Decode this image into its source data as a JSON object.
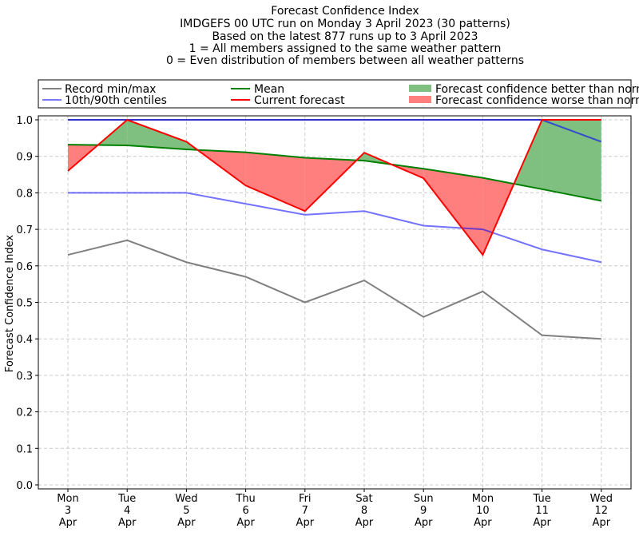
{
  "chart_data": {
    "type": "line",
    "title": [
      "Forecast Confidence Index",
      "IMDGEFS 00 UTC run on Monday 3 April 2023 (30 patterns)",
      "Based on the latest 877 runs up to 3 April 2023",
      "1 = All members assigned to the same weather pattern",
      "0 = Even distribution of members between all weather patterns"
    ],
    "ylabel": "Forecast Confidence Index",
    "xlabel": "",
    "ylim": [
      -0.01,
      1.01
    ],
    "yticks": [
      "0.0",
      "0.1",
      "0.2",
      "0.3",
      "0.4",
      "0.5",
      "0.6",
      "0.7",
      "0.8",
      "0.9",
      "1.0"
    ],
    "categories": [
      [
        "Mon",
        "3",
        "Apr"
      ],
      [
        "Tue",
        "4",
        "Apr"
      ],
      [
        "Wed",
        "5",
        "Apr"
      ],
      [
        "Thu",
        "6",
        "Apr"
      ],
      [
        "Fri",
        "7",
        "Apr"
      ],
      [
        "Sat",
        "8",
        "Apr"
      ],
      [
        "Sun",
        "9",
        "Apr"
      ],
      [
        "Mon",
        "10",
        "Apr"
      ],
      [
        "Tue",
        "11",
        "Apr"
      ],
      [
        "Wed",
        "12",
        "Apr"
      ]
    ],
    "grid": true,
    "legend_placement": "top",
    "series": [
      {
        "name": "Record min/max",
        "color": "#808080",
        "values_min": [
          0.63,
          0.67,
          0.61,
          0.57,
          0.5,
          0.56,
          0.46,
          0.53,
          0.41,
          0.4
        ],
        "values_max": [
          1.0,
          1.0,
          1.0,
          1.0,
          1.0,
          1.0,
          1.0,
          1.0,
          1.0,
          1.0
        ]
      },
      {
        "name": "10th/90th centiles",
        "color": "#7777ff",
        "values_10": [
          0.8,
          0.8,
          0.8,
          0.77,
          0.74,
          0.75,
          0.71,
          0.7,
          0.645,
          0.61
        ],
        "values_90": [
          1.0,
          1.0,
          1.0,
          1.0,
          1.0,
          1.0,
          1.0,
          1.0,
          1.0,
          0.94
        ]
      },
      {
        "name": "Mean",
        "color": "#008000",
        "values": [
          0.932,
          0.93,
          0.919,
          0.911,
          0.896,
          0.888,
          0.866,
          0.841,
          0.81,
          0.778
        ]
      },
      {
        "name": "Current forecast",
        "color": "#ff0000",
        "values": [
          0.86,
          1.0,
          0.94,
          0.82,
          0.75,
          0.91,
          0.84,
          0.63,
          1.0,
          1.0
        ]
      }
    ],
    "fills": [
      {
        "name": "Forecast confidence better than normal",
        "color": "#7fbf7f"
      },
      {
        "name": "Forecast confidence worse than normal",
        "color": "#ff7f7f"
      }
    ]
  }
}
